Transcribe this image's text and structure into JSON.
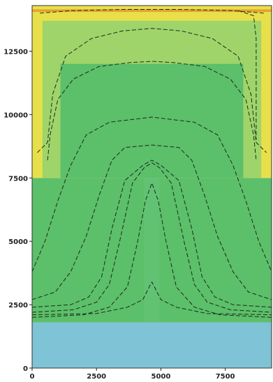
{
  "chart_data": {
    "type": "heatmap",
    "title": "",
    "xlabel": "",
    "ylabel": "",
    "xlim": [
      0,
      9300
    ],
    "ylim": [
      0,
      14300
    ],
    "x_ticks": [
      {
        "value": 0,
        "label": "0"
      },
      {
        "value": 2500,
        "label": "2500"
      },
      {
        "value": 5000,
        "label": "5000"
      },
      {
        "value": 7500,
        "label": "7500"
      }
    ],
    "y_ticks": [
      {
        "value": 0,
        "label": "0"
      },
      {
        "value": 2500,
        "label": "2500"
      },
      {
        "value": 5000,
        "label": "5000"
      },
      {
        "value": 7500,
        "label": "7500"
      },
      {
        "value": 10000,
        "label": "10000"
      },
      {
        "value": 12500,
        "label": "12500"
      }
    ],
    "colors": {
      "yellow": "#e8e04a",
      "light_green": "#9fd46a",
      "green": "#5cbf6a",
      "mid_green": "#66c47a",
      "blue": "#7fc3d6",
      "orange": "#e8a030"
    },
    "regions": [
      {
        "name": "blue-base",
        "x": [
          0,
          9300
        ],
        "y": [
          0,
          1800
        ],
        "color": "blue"
      },
      {
        "name": "green-body",
        "x": [
          0,
          9300
        ],
        "y": [
          1800,
          7500
        ],
        "color": "green"
      },
      {
        "name": "yellow-upper",
        "x": [
          0,
          9300
        ],
        "y": [
          7500,
          14300
        ],
        "color": "yellow"
      },
      {
        "name": "green-dome",
        "x": [
          400,
          8900
        ],
        "y": [
          7500,
          13700
        ],
        "color": "light_green"
      },
      {
        "name": "green-dome-core",
        "x": [
          1100,
          8200
        ],
        "y": [
          7500,
          12000
        ],
        "color": "green"
      },
      {
        "name": "orange-top-band",
        "x": [
          0,
          9300
        ],
        "y": [
          14050,
          14150
        ],
        "color": "orange"
      },
      {
        "name": "center-channel",
        "x": [
          4350,
          4950
        ],
        "y": [
          1800,
          7500
        ],
        "color": "mid_green"
      }
    ],
    "contours": [
      {
        "points": [
          [
            0,
            2400
          ],
          [
            1500,
            2500
          ],
          [
            2200,
            2800
          ],
          [
            2700,
            3600
          ],
          [
            3100,
            5500
          ],
          [
            3600,
            7400
          ],
          [
            4300,
            8000
          ],
          [
            4650,
            8200
          ],
          [
            5000,
            8000
          ],
          [
            5700,
            7400
          ],
          [
            6200,
            5500
          ],
          [
            6600,
            3600
          ],
          [
            7100,
            2800
          ],
          [
            7800,
            2500
          ],
          [
            9300,
            2400
          ]
        ]
      },
      {
        "points": [
          [
            0,
            2200
          ],
          [
            1600,
            2300
          ],
          [
            2500,
            2600
          ],
          [
            3000,
            3300
          ],
          [
            3400,
            5000
          ],
          [
            3900,
            7300
          ],
          [
            4350,
            7900
          ],
          [
            4650,
            8100
          ],
          [
            4950,
            7900
          ],
          [
            5400,
            7300
          ],
          [
            5900,
            5000
          ],
          [
            6300,
            3300
          ],
          [
            6800,
            2600
          ],
          [
            7700,
            2300
          ],
          [
            9300,
            2200
          ]
        ]
      },
      {
        "points": [
          [
            0,
            2000
          ],
          [
            2000,
            2100
          ],
          [
            3000,
            2400
          ],
          [
            3700,
            3200
          ],
          [
            4100,
            5000
          ],
          [
            4400,
            6600
          ],
          [
            4650,
            7300
          ],
          [
            4900,
            6600
          ],
          [
            5200,
            5000
          ],
          [
            5600,
            3200
          ],
          [
            6300,
            2400
          ],
          [
            7300,
            2100
          ],
          [
            9300,
            2000
          ]
        ]
      },
      {
        "points": [
          [
            0,
            2100
          ],
          [
            2500,
            2150
          ],
          [
            3700,
            2400
          ],
          [
            4300,
            2700
          ],
          [
            4550,
            3200
          ],
          [
            4650,
            3400
          ],
          [
            4750,
            3200
          ],
          [
            5000,
            2700
          ],
          [
            5600,
            2400
          ],
          [
            6800,
            2150
          ],
          [
            9300,
            2100
          ]
        ]
      },
      {
        "points": [
          [
            0,
            2700
          ],
          [
            900,
            3000
          ],
          [
            1500,
            3800
          ],
          [
            2100,
            5200
          ],
          [
            2600,
            6800
          ],
          [
            3100,
            8200
          ],
          [
            3600,
            8700
          ],
          [
            4650,
            8800
          ],
          [
            5700,
            8700
          ],
          [
            6200,
            8200
          ],
          [
            6700,
            6800
          ],
          [
            7200,
            5200
          ],
          [
            7800,
            3800
          ],
          [
            8400,
            3000
          ],
          [
            9300,
            2700
          ]
        ]
      },
      {
        "points": [
          [
            0,
            3800
          ],
          [
            500,
            5000
          ],
          [
            1000,
            6600
          ],
          [
            1500,
            8000
          ],
          [
            2100,
            9200
          ],
          [
            3000,
            9700
          ],
          [
            4650,
            9900
          ],
          [
            6300,
            9700
          ],
          [
            7200,
            9200
          ],
          [
            7800,
            8000
          ],
          [
            8300,
            6600
          ],
          [
            8800,
            5000
          ],
          [
            9300,
            3800
          ]
        ]
      },
      {
        "points": [
          [
            600,
            8200
          ],
          [
            700,
            9200
          ],
          [
            1000,
            10600
          ],
          [
            1600,
            11400
          ],
          [
            2600,
            11900
          ],
          [
            3800,
            12050
          ],
          [
            4650,
            12100
          ],
          [
            5500,
            12050
          ],
          [
            6700,
            11900
          ],
          [
            7700,
            11400
          ],
          [
            8300,
            10600
          ],
          [
            8600,
            9200
          ],
          [
            8700,
            8200
          ]
        ]
      },
      {
        "points": [
          [
            200,
            8500
          ],
          [
            600,
            8900
          ],
          [
            800,
            10800
          ],
          [
            1300,
            12300
          ],
          [
            2300,
            13000
          ],
          [
            3500,
            13300
          ],
          [
            4650,
            13400
          ],
          [
            5800,
            13300
          ],
          [
            7000,
            13000
          ],
          [
            8000,
            12300
          ],
          [
            8500,
            10800
          ],
          [
            8700,
            8900
          ],
          [
            9100,
            8500
          ]
        ]
      },
      {
        "points": [
          [
            300,
            14000
          ],
          [
            1500,
            14100
          ],
          [
            3500,
            14150
          ],
          [
            4650,
            14150
          ],
          [
            5800,
            14150
          ],
          [
            7800,
            14100
          ],
          [
            9000,
            14000
          ]
        ]
      },
      {
        "points": [
          [
            8000,
            14100
          ],
          [
            8600,
            13900
          ],
          [
            8700,
            13000
          ],
          [
            8700,
            9000
          ]
        ]
      }
    ]
  }
}
